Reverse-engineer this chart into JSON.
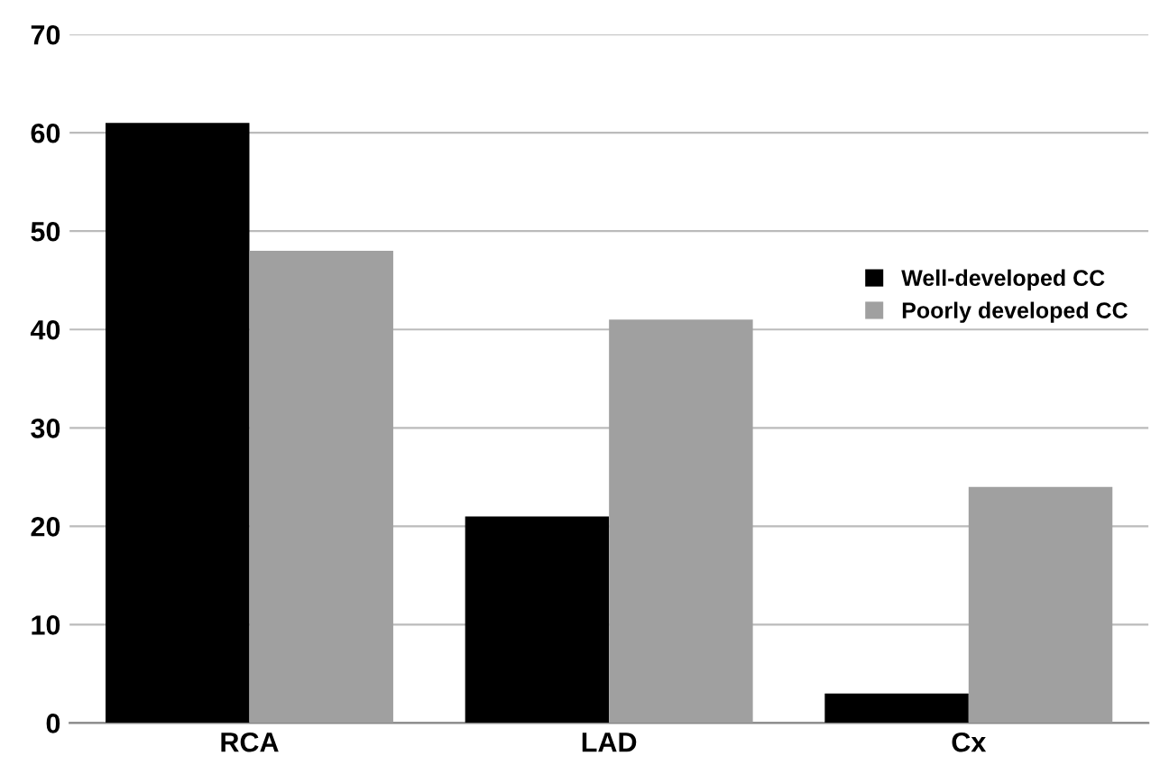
{
  "chart_data": {
    "type": "bar",
    "categories": [
      "RCA",
      "LAD",
      "Cx"
    ],
    "series": [
      {
        "name": "Well-developed CC",
        "color": "#000000",
        "values": [
          61,
          21,
          3
        ]
      },
      {
        "name": "Poorly developed CC",
        "color": "#a0a0a0",
        "values": [
          48,
          41,
          24
        ]
      }
    ],
    "ylim": [
      0,
      70
    ],
    "yticks": [
      0,
      10,
      20,
      30,
      40,
      50,
      60,
      70
    ],
    "grid": "y",
    "legend": "right"
  }
}
